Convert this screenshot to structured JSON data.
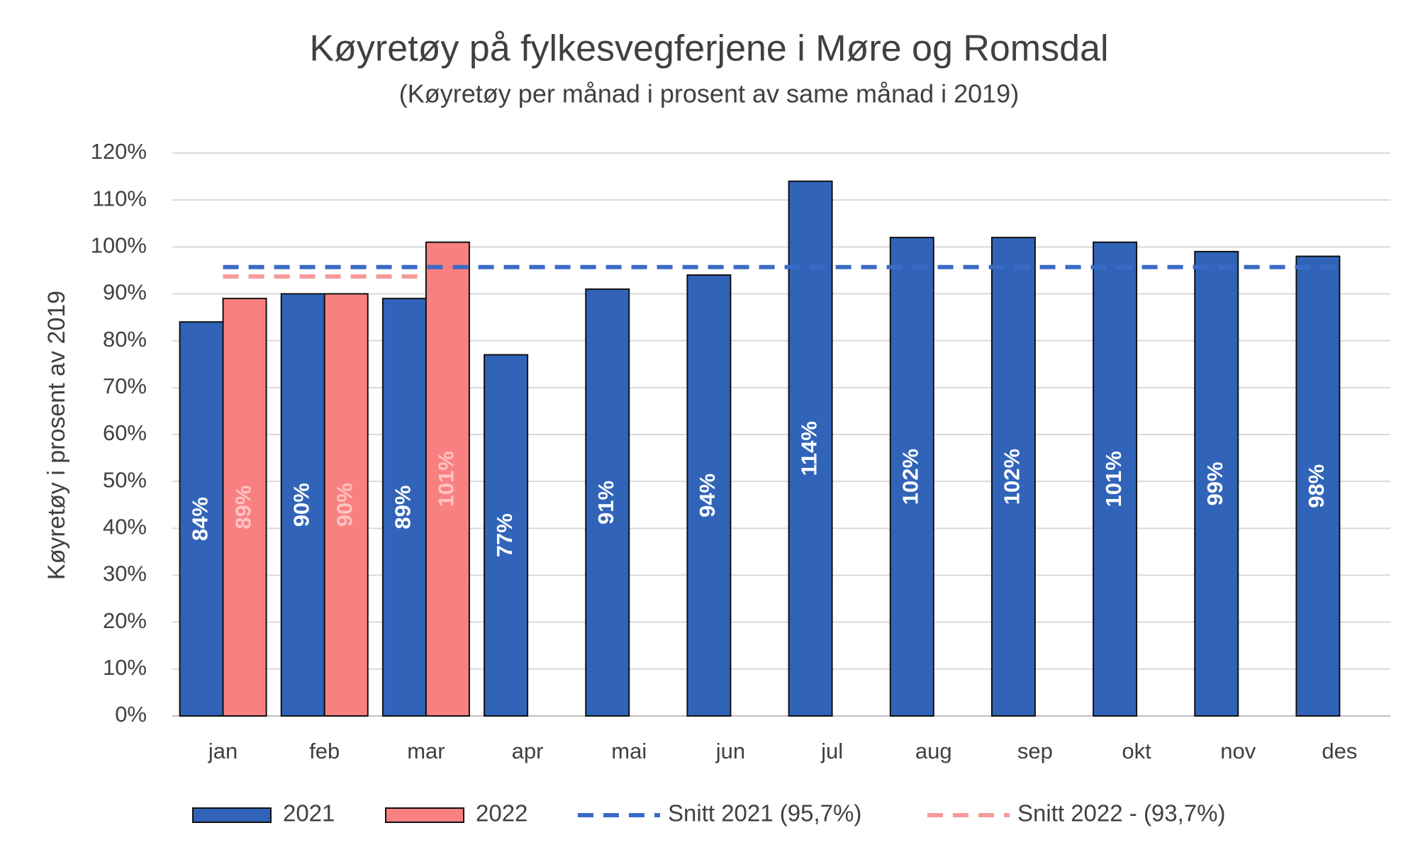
{
  "chart_data": {
    "type": "bar",
    "title": "Køyretøy på fylkesvegferjene i Møre og Romsdal",
    "subtitle": "(Køyretøy per månad i prosent av same månad i 2019)",
    "y_axis_label": "Køyretøy i prosent av 2019",
    "categories": [
      "jan",
      "feb",
      "mar",
      "apr",
      "mai",
      "jun",
      "jul",
      "aug",
      "sep",
      "okt",
      "nov",
      "des"
    ],
    "series": [
      {
        "name": "2021",
        "color": "#3164b9",
        "label_color": "#ffffff",
        "values": [
          84,
          90,
          89,
          77,
          91,
          94,
          114,
          102,
          102,
          101,
          99,
          98
        ],
        "value_labels": [
          "84%",
          "90%",
          "89%",
          "77%",
          "91%",
          "94%",
          "114%",
          "102%",
          "102%",
          "101%",
          "99%",
          "98%"
        ]
      },
      {
        "name": "2022",
        "color": "#f98080",
        "label_color": "#ffc2c2",
        "values": [
          89,
          90,
          101,
          null,
          null,
          null,
          null,
          null,
          null,
          null,
          null,
          null
        ],
        "value_labels": [
          "89%",
          "90%",
          "101%",
          null,
          null,
          null,
          null,
          null,
          null,
          null,
          null,
          null
        ]
      },
      {
        "name": "Snitt 2021 (95,7%)",
        "type": "line",
        "dashed": true,
        "color": "#3a6bc6",
        "values": [
          95.7,
          95.7,
          95.7,
          95.7,
          95.7,
          95.7,
          95.7,
          95.7,
          95.7,
          95.7,
          95.7,
          95.7
        ]
      },
      {
        "name": "Snitt 2022 - (93,7%)",
        "type": "line",
        "dashed": true,
        "color": "#f79a9a",
        "values": [
          93.7,
          93.7,
          93.7,
          null,
          null,
          null,
          null,
          null,
          null,
          null,
          null,
          null
        ]
      }
    ],
    "ylim": [
      0,
      120
    ],
    "yticks": [
      {
        "value": 0,
        "label": "0%"
      },
      {
        "value": 10,
        "label": "10%"
      },
      {
        "value": 20,
        "label": "20%"
      },
      {
        "value": 30,
        "label": "30%"
      },
      {
        "value": 40,
        "label": "40%"
      },
      {
        "value": 50,
        "label": "50%"
      },
      {
        "value": 60,
        "label": "60%"
      },
      {
        "value": 70,
        "label": "70%"
      },
      {
        "value": 80,
        "label": "80%"
      },
      {
        "value": 90,
        "label": "90%"
      },
      {
        "value": 100,
        "label": "100%"
      },
      {
        "value": 110,
        "label": "110%"
      },
      {
        "value": 120,
        "label": "120%"
      }
    ],
    "grid": true,
    "legend": "bottom"
  }
}
